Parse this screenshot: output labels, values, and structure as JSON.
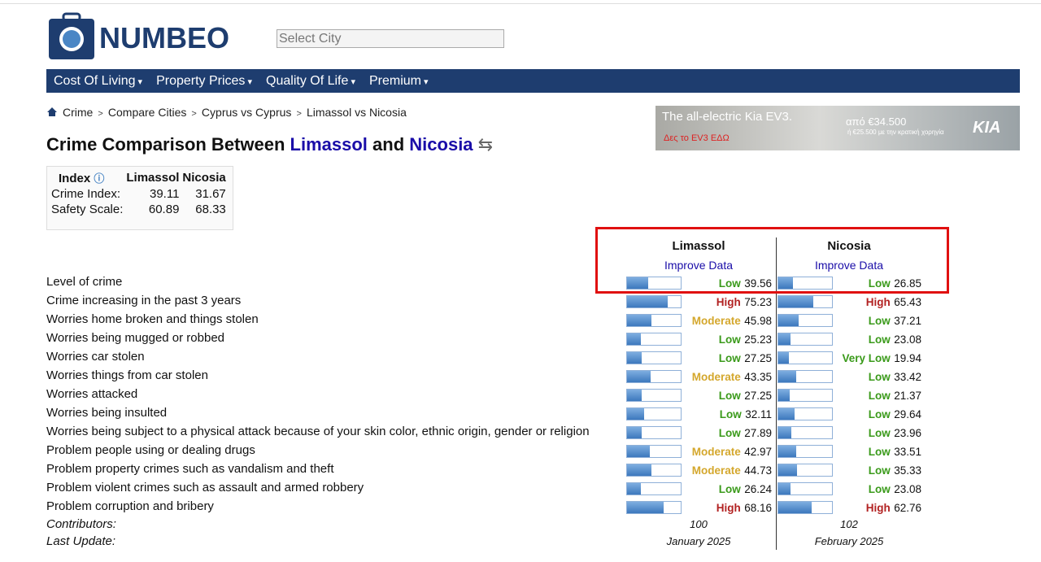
{
  "header": {
    "logo": "NUMBEO",
    "search_placeholder": "Select City"
  },
  "nav": [
    "Cost Of Living",
    "Property Prices",
    "Quality Of Life",
    "Premium"
  ],
  "breadcrumb": [
    "Crime",
    "Compare Cities",
    "Cyprus vs Cyprus",
    "Limassol vs Nicosia"
  ],
  "ad": {
    "headline": "The all-electric Kia EV3.",
    "cta": "Δες το EV3 ΕΔΩ",
    "price": "από €34.500",
    "subsidy": "ή €25.500 με την κρατική χορηγία",
    "brand": "KIA"
  },
  "title": {
    "prefix": "Crime Comparison Between",
    "city1": "Limassol",
    "joiner": "and",
    "city2": "Nicosia"
  },
  "index_table": {
    "headers": [
      "Index",
      "Limassol",
      "Nicosia"
    ],
    "rows": [
      [
        "Crime Index:",
        39.11,
        31.67
      ],
      [
        "Safety Scale:",
        60.89,
        68.33
      ]
    ]
  },
  "comparison": {
    "cities": [
      "Limassol",
      "Nicosia"
    ],
    "improve": "Improve Data",
    "scale": [
      0,
      100
    ],
    "level_colors": {
      "Very Low": "#3a9a1a",
      "Low": "#3a9a1a",
      "Moderate": "#d4a72c",
      "High": "#b22222"
    },
    "rows": [
      {
        "label": "Level of crime",
        "levels": [
          "Low",
          "Low"
        ],
        "values": [
          39.56,
          26.85
        ]
      },
      {
        "label": "Crime increasing in the past 3 years",
        "levels": [
          "High",
          "High"
        ],
        "values": [
          75.23,
          65.43
        ]
      },
      {
        "label": "Worries home broken and things stolen",
        "levels": [
          "Moderate",
          "Low"
        ],
        "values": [
          45.98,
          37.21
        ]
      },
      {
        "label": "Worries being mugged or robbed",
        "levels": [
          "Low",
          "Low"
        ],
        "values": [
          25.23,
          23.08
        ]
      },
      {
        "label": "Worries car stolen",
        "levels": [
          "Low",
          "Very Low"
        ],
        "values": [
          27.25,
          19.94
        ]
      },
      {
        "label": "Worries things from car stolen",
        "levels": [
          "Moderate",
          "Low"
        ],
        "values": [
          43.35,
          33.42
        ]
      },
      {
        "label": "Worries attacked",
        "levels": [
          "Low",
          "Low"
        ],
        "values": [
          27.25,
          21.37
        ]
      },
      {
        "label": "Worries being insulted",
        "levels": [
          "Low",
          "Low"
        ],
        "values": [
          32.11,
          29.64
        ]
      },
      {
        "label": "Worries being subject to a physical attack because of your skin color, ethnic origin, gender or religion",
        "levels": [
          "Low",
          "Low"
        ],
        "values": [
          27.89,
          23.96
        ]
      },
      {
        "label": "Problem people using or dealing drugs",
        "levels": [
          "Moderate",
          "Low"
        ],
        "values": [
          42.97,
          33.51
        ]
      },
      {
        "label": "Problem property crimes such as vandalism and theft",
        "levels": [
          "Moderate",
          "Low"
        ],
        "values": [
          44.73,
          35.33
        ]
      },
      {
        "label": "Problem violent crimes such as assault and armed robbery",
        "levels": [
          "Low",
          "Low"
        ],
        "values": [
          26.24,
          23.08
        ]
      },
      {
        "label": "Problem corruption and bribery",
        "levels": [
          "High",
          "High"
        ],
        "values": [
          68.16,
          62.76
        ]
      }
    ],
    "contributors_label": "Contributors:",
    "contributors": [
      100,
      102
    ],
    "last_update_label": "Last Update:",
    "last_update": [
      "January 2025",
      "February 2025"
    ]
  }
}
